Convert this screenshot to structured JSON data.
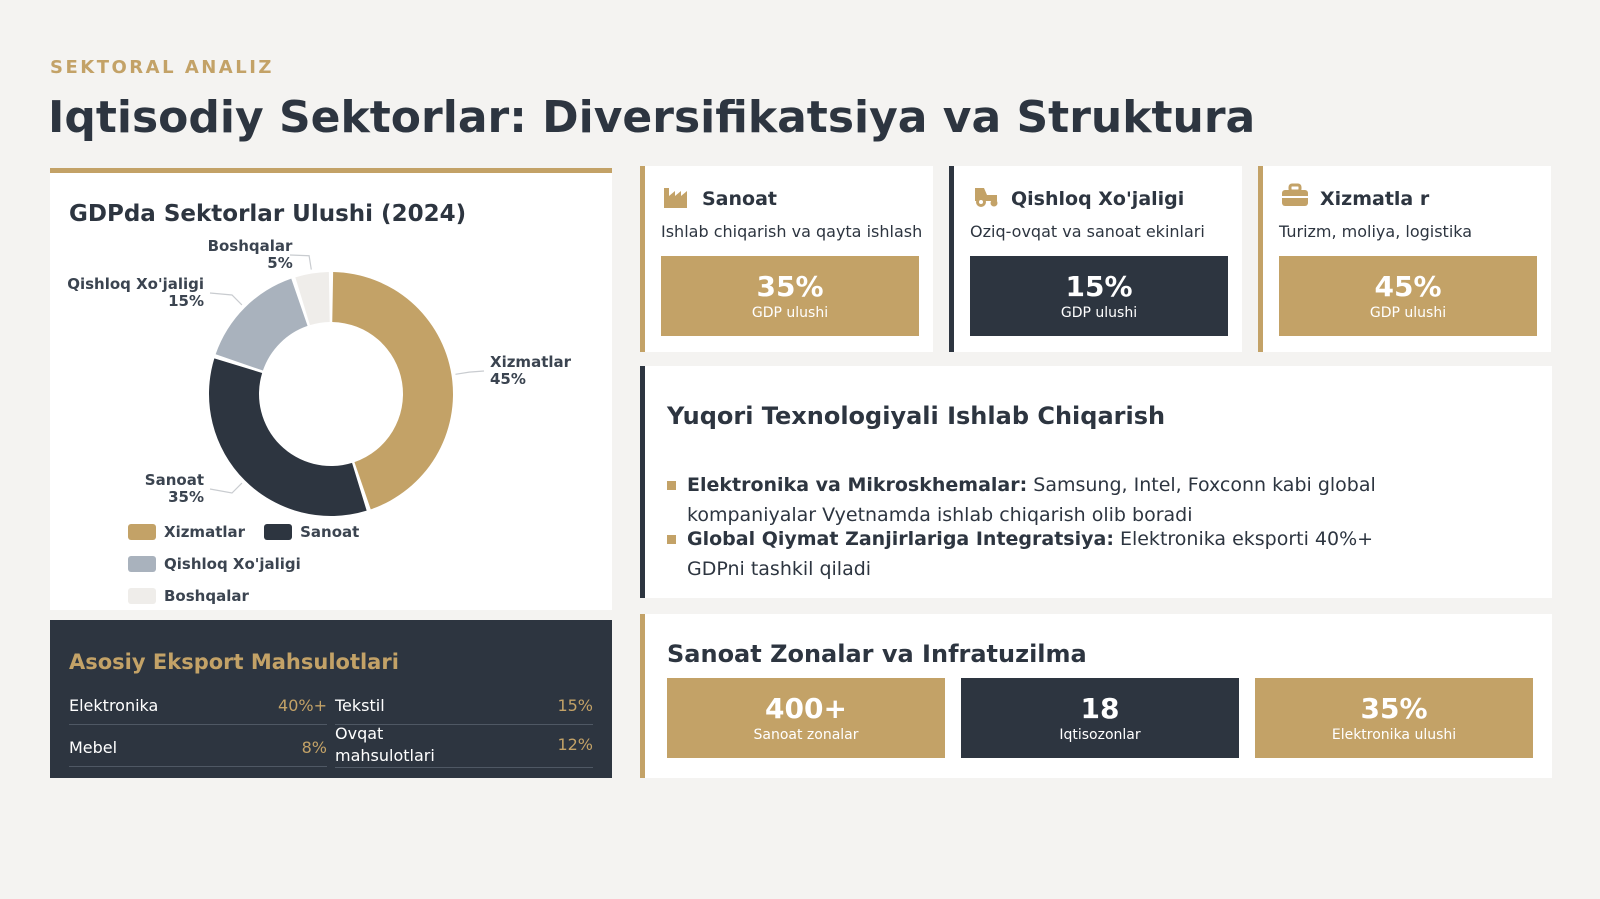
{
  "header": {
    "eyebrow": "SEKTORAL ANALIZ",
    "title": "Iqtisodiy Sektorlar: Diversifikatsiya va Struktura"
  },
  "chart_data": {
    "type": "pie",
    "title": "GDPda Sektorlar Ulushi (2024)",
    "categories": [
      "Xizmatlar",
      "Sanoat",
      "Qishloq Xo'jaligi",
      "Boshqalar"
    ],
    "values": [
      45,
      35,
      15,
      5
    ],
    "value_labels": [
      "45%",
      "35%",
      "15%",
      "5%"
    ],
    "colors": [
      "#c3a267",
      "#2d3540",
      "#a9b2bd",
      "#efedea"
    ],
    "legend_position": "bottom",
    "donut": true
  },
  "exports": {
    "title": "Asosiy Eksport Mahsulotlari",
    "items": [
      {
        "name": "Elektronika",
        "value": "40%+"
      },
      {
        "name": "Tekstil",
        "value": "15%"
      },
      {
        "name": "Mebel",
        "value": "8%"
      },
      {
        "name": "Ovqat mahsulotlari",
        "value": "12%"
      }
    ]
  },
  "sectors": [
    {
      "name": "Sanoat",
      "icon": "factory-icon",
      "desc": "Ishlab chiqarish va qayta ishlash",
      "pct": "35%",
      "label": "GDP ulushi"
    },
    {
      "name": "Qishloq Xo'jaligi",
      "icon": "tractor-icon",
      "desc": "Oziq-ovqat va sanoat ekinlari",
      "pct": "15%",
      "label": "GDP ulushi"
    },
    {
      "name": "Xizmatla r",
      "icon": "briefcase-icon",
      "desc": "Turizm, moliya, logistika",
      "pct": "45%",
      "label": "GDP ulushi"
    }
  ],
  "tech": {
    "title": "Yuqori Texnologiyali Ishlab Chiqarish",
    "bullets": [
      {
        "bold": "Elektronika va Mikroskhemalar:",
        "text": " Samsung, Intel, Foxconn kabi global kompaniyalar Vyetnamda ishlab chiqarish olib boradi"
      },
      {
        "bold": "Global Qiymat Zanjirlariga Integratsiya:",
        "text": " Elektronika eksporti 40%+ GDPni tashkil qiladi"
      }
    ]
  },
  "zones": {
    "title": "Sanoat Zonalar va Infratuzilma",
    "stats": [
      {
        "value": "400+",
        "label": "Sanoat zonalar"
      },
      {
        "value": "18",
        "label": "Iqtisozonlar"
      },
      {
        "value": "35%",
        "label": "Elektronika ulushi"
      }
    ]
  }
}
